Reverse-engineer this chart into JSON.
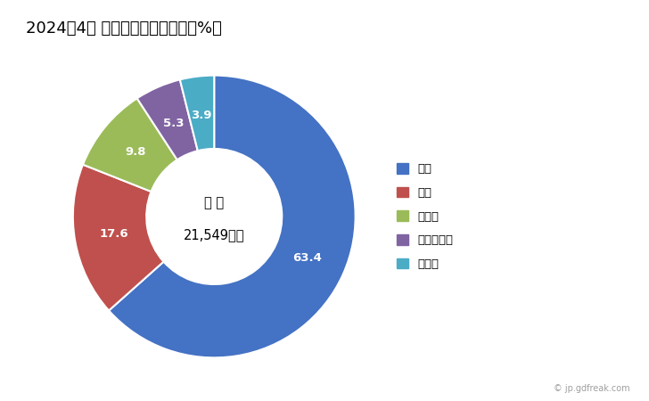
{
  "title": "2024年4月 輸出相手国のシェア（%）",
  "title_fontsize": 13,
  "center_label_line1": "総 額",
  "center_label_line2": "21,549万円",
  "categories": [
    "中国",
    "チリ",
    "ドイツ",
    "ハンガリー",
    "その他"
  ],
  "values": [
    63.4,
    17.6,
    9.8,
    5.3,
    3.9
  ],
  "colors": [
    "#4472C4",
    "#C0504D",
    "#9BBB59",
    "#8064A2",
    "#4BACC6"
  ],
  "background_color": "#FFFFFF",
  "watermark": "© jp.gdfreak.com"
}
